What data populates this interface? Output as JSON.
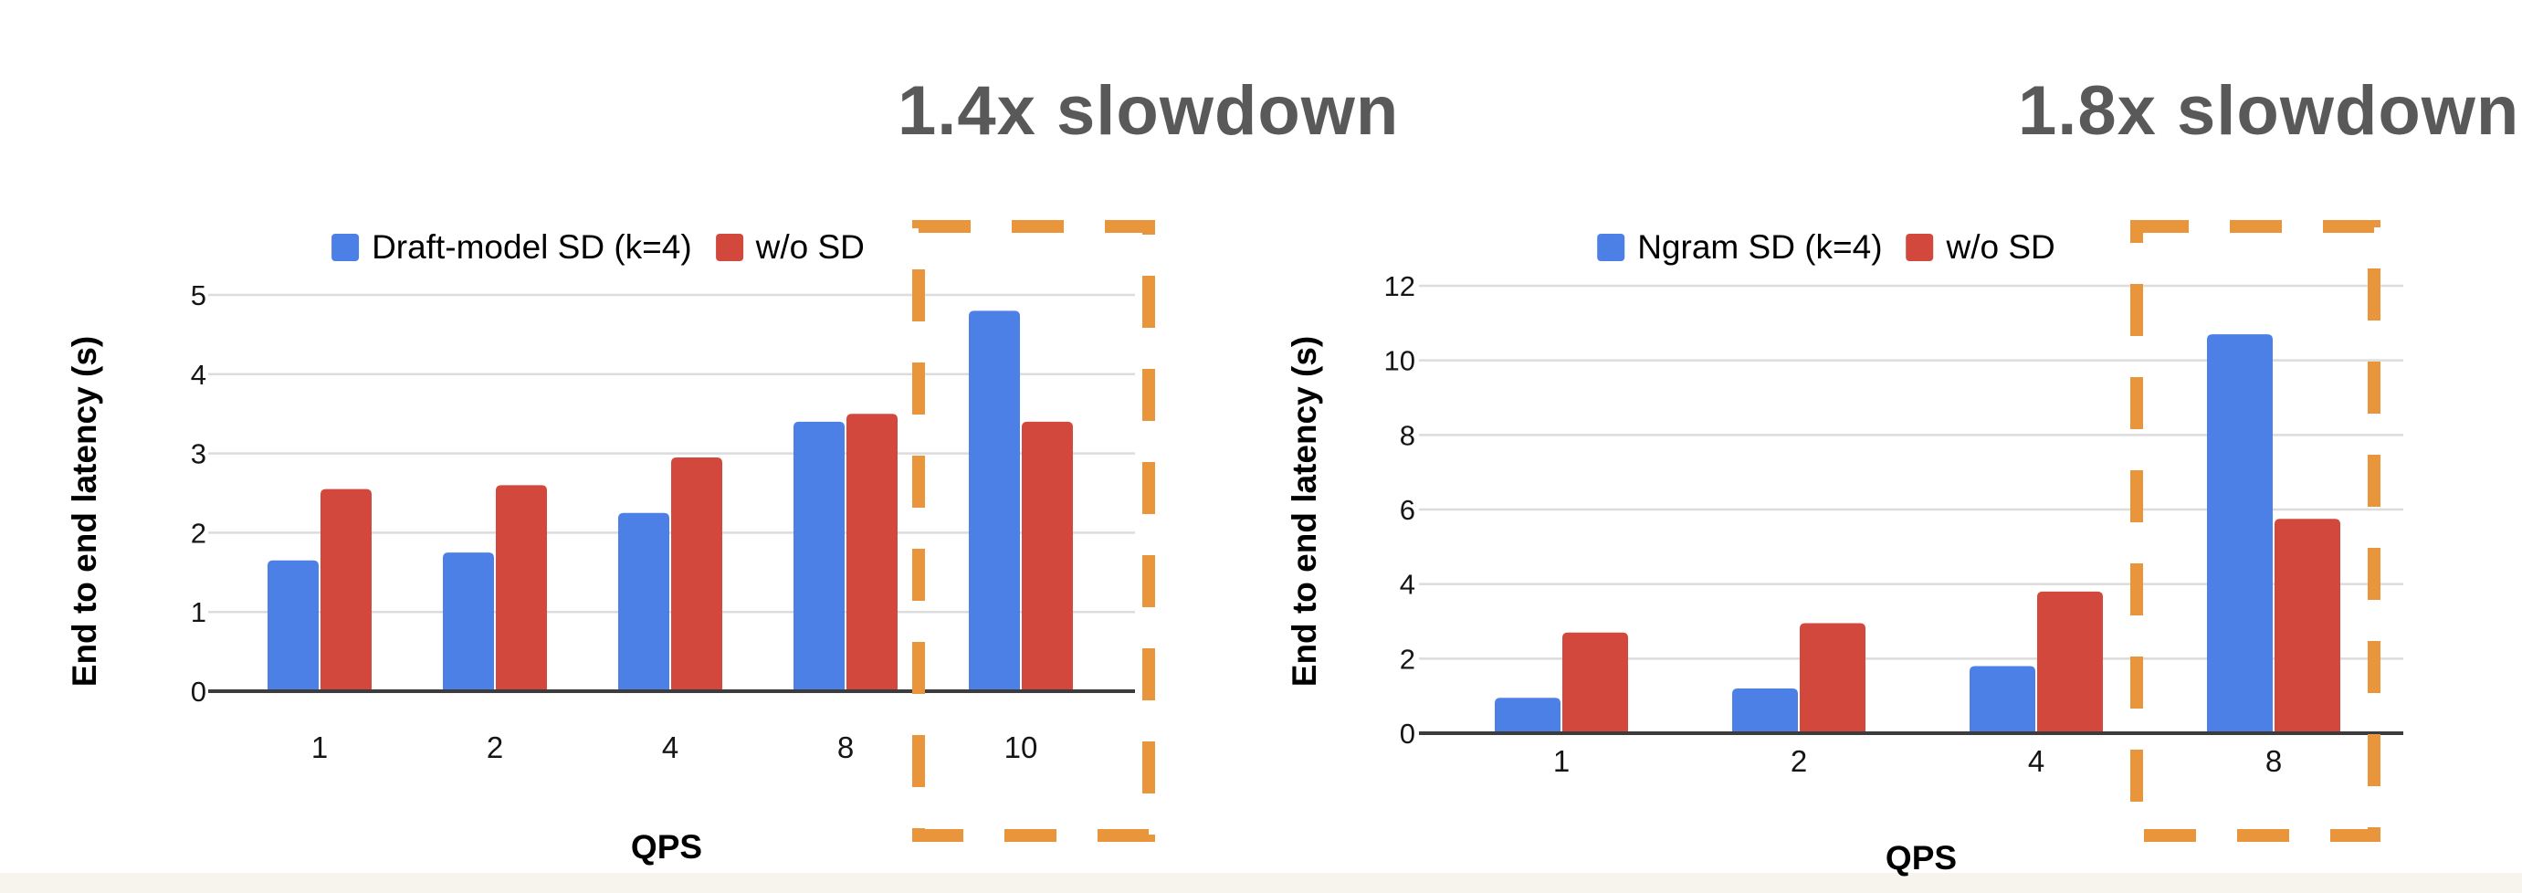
{
  "page": {
    "background": "#ffffff"
  },
  "chart_data": [
    {
      "type": "bar",
      "annotation": "1.4x slowdown",
      "categories": [
        "1",
        "2",
        "4",
        "8",
        "10"
      ],
      "series": [
        {
          "name": "Draft-model SD (k=4)",
          "color": "#4D80E6",
          "values": [
            1.65,
            1.75,
            2.25,
            3.4,
            4.8
          ]
        },
        {
          "name": "w/o SD",
          "color": "#D2483C",
          "values": [
            2.55,
            2.6,
            2.95,
            3.5,
            3.4
          ]
        }
      ],
      "xlabel": "QPS",
      "ylabel": "End to end latency (s)",
      "ylim": [
        0,
        5
      ],
      "y_ticks": [
        0,
        1,
        2,
        3,
        4,
        5
      ],
      "grid": true,
      "legend_position": "top",
      "highlight": {
        "category": "10",
        "style": "orange-dashed-box",
        "color": "#E8953C"
      }
    },
    {
      "type": "bar",
      "annotation": "1.8x slowdown",
      "categories": [
        "1",
        "2",
        "4",
        "8"
      ],
      "series": [
        {
          "name": "Ngram SD (k=4)",
          "color": "#4D80E6",
          "values": [
            0.95,
            1.2,
            1.8,
            10.7
          ]
        },
        {
          "name": "w/o SD",
          "color": "#D2483C",
          "values": [
            2.7,
            2.95,
            3.8,
            5.75
          ]
        }
      ],
      "xlabel": "QPS",
      "ylabel": "End to end latency (s)",
      "ylim": [
        0,
        12
      ],
      "y_ticks": [
        0,
        2,
        4,
        6,
        8,
        10,
        12
      ],
      "grid": true,
      "legend_position": "top",
      "highlight": {
        "category": "8",
        "style": "orange-dashed-box",
        "color": "#E8953C"
      }
    }
  ],
  "annotation_text_color": "#595959"
}
